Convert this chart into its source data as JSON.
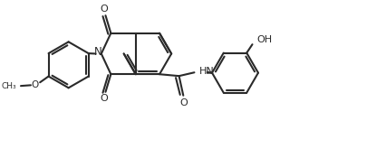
{
  "bg_color": "#ffffff",
  "lc": "#2a2a2a",
  "lw": 1.5,
  "fig_w": 4.27,
  "fig_h": 1.75,
  "dpi": 100,
  "xlim": [
    0,
    10.5
  ],
  "ylim": [
    0,
    4.2
  ]
}
